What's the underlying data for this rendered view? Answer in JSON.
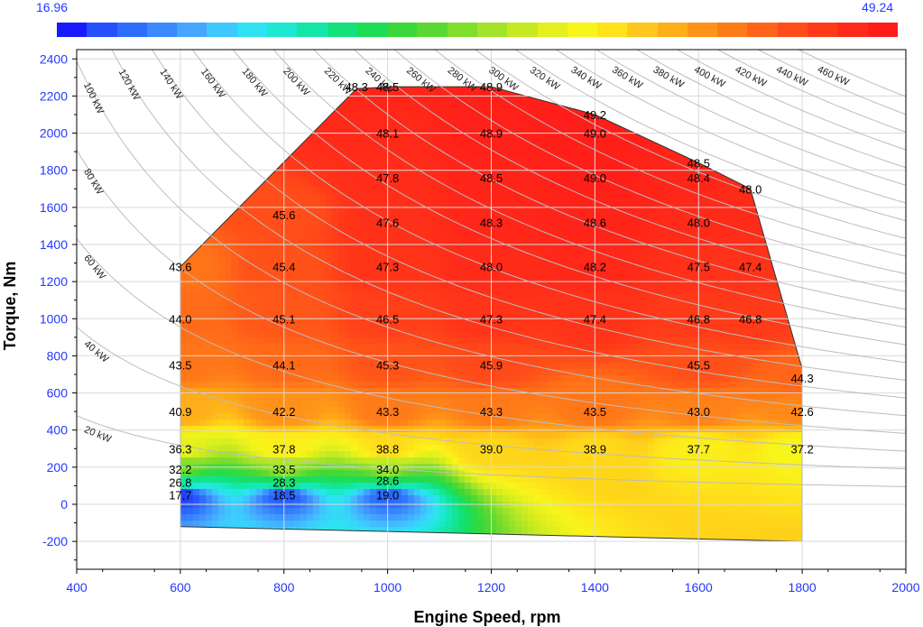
{
  "chart_data": {
    "type": "heatmap",
    "xlabel": "Engine Speed, rpm",
    "ylabel": "Torque, Nm",
    "xlim": [
      400,
      2000
    ],
    "ylim": [
      -350,
      2450
    ],
    "x_ticks": [
      400,
      600,
      800,
      1000,
      1200,
      1400,
      1600,
      1800,
      2000
    ],
    "y_ticks": [
      -200,
      0,
      200,
      400,
      600,
      800,
      1000,
      1200,
      1400,
      1600,
      1800,
      2000,
      2200,
      2400
    ],
    "x_ticks_labels": [
      "400",
      "600",
      "800",
      "1000",
      "1200",
      "1400",
      "1600",
      "1800",
      "2000"
    ],
    "y_ticks_labels": [
      "-200",
      "0",
      "200",
      "400",
      "600",
      "800",
      "1000",
      "1200",
      "1400",
      "1600",
      "1800",
      "2000",
      "2200",
      "2400"
    ],
    "colorbar": {
      "min": 16.96,
      "max": 49.24,
      "min_label": "16.96",
      "max_label": "49.24",
      "colors": [
        "#1a1aff",
        "#2550ff",
        "#2f6dff",
        "#3b8aff",
        "#46a6ff",
        "#3ec8ff",
        "#2ee3f2",
        "#1de9d2",
        "#13e7a8",
        "#12e27c",
        "#1edc55",
        "#3ad83a",
        "#5ad832",
        "#7fdd2c",
        "#a3e428",
        "#c6ea22",
        "#e3f01d",
        "#f8f51a",
        "#ffe21a",
        "#ffc81a",
        "#ffae1a",
        "#ff9419",
        "#ff7b19",
        "#ff6319",
        "#ff4d19",
        "#ff3a19",
        "#ff2a19",
        "#ff1c19"
      ]
    },
    "boundary": [
      [
        600,
        -120
      ],
      [
        600,
        1280
      ],
      [
        940,
        2240
      ],
      [
        1010,
        2250
      ],
      [
        1200,
        2250
      ],
      [
        1400,
        2100
      ],
      [
        1600,
        1840
      ],
      [
        1700,
        1700
      ],
      [
        1800,
        730
      ],
      [
        1800,
        -200
      ]
    ],
    "points": [
      {
        "x": 600,
        "y": 1280,
        "value": 43.6,
        "label": "43.6"
      },
      {
        "x": 600,
        "y": 1000,
        "value": 44.0,
        "label": "44.0"
      },
      {
        "x": 600,
        "y": 750,
        "value": 43.5,
        "label": "43.5"
      },
      {
        "x": 600,
        "y": 500,
        "value": 40.9,
        "label": "40.9"
      },
      {
        "x": 600,
        "y": 300,
        "value": 36.3,
        "label": "36.3"
      },
      {
        "x": 600,
        "y": 190,
        "value": 32.2,
        "label": "32.2"
      },
      {
        "x": 600,
        "y": 120,
        "value": 26.8,
        "label": "26.8"
      },
      {
        "x": 600,
        "y": 50,
        "value": 17.7,
        "label": "17.7"
      },
      {
        "x": 800,
        "y": 1560,
        "value": 45.6,
        "label": "45.6"
      },
      {
        "x": 800,
        "y": 1280,
        "value": 45.4,
        "label": "45.4"
      },
      {
        "x": 800,
        "y": 1000,
        "value": 45.1,
        "label": "45.1"
      },
      {
        "x": 800,
        "y": 750,
        "value": 44.1,
        "label": "44.1"
      },
      {
        "x": 800,
        "y": 500,
        "value": 42.2,
        "label": "42.2"
      },
      {
        "x": 800,
        "y": 300,
        "value": 37.8,
        "label": "37.8"
      },
      {
        "x": 800,
        "y": 190,
        "value": 33.5,
        "label": "33.5"
      },
      {
        "x": 800,
        "y": 120,
        "value": 28.3,
        "label": "28.3"
      },
      {
        "x": 800,
        "y": 50,
        "value": 18.5,
        "label": "18.5"
      },
      {
        "x": 940,
        "y": 2250,
        "value": 48.3,
        "label": "48.3"
      },
      {
        "x": 1000,
        "y": 2250,
        "value": 48.5,
        "label": "48.5"
      },
      {
        "x": 1000,
        "y": 2000,
        "value": 48.1,
        "label": "48.1"
      },
      {
        "x": 1000,
        "y": 1760,
        "value": 47.8,
        "label": "47.8"
      },
      {
        "x": 1000,
        "y": 1520,
        "value": 47.6,
        "label": "47.6"
      },
      {
        "x": 1000,
        "y": 1280,
        "value": 47.3,
        "label": "47.3"
      },
      {
        "x": 1000,
        "y": 1000,
        "value": 46.5,
        "label": "46.5"
      },
      {
        "x": 1000,
        "y": 750,
        "value": 45.3,
        "label": "45.3"
      },
      {
        "x": 1000,
        "y": 500,
        "value": 43.3,
        "label": "43.3"
      },
      {
        "x": 1000,
        "y": 300,
        "value": 38.8,
        "label": "38.8"
      },
      {
        "x": 1000,
        "y": 190,
        "value": 34.0,
        "label": "34.0"
      },
      {
        "x": 1000,
        "y": 130,
        "value": 28.6,
        "label": "28.6"
      },
      {
        "x": 1000,
        "y": 50,
        "value": 19.0,
        "label": "19.0"
      },
      {
        "x": 1200,
        "y": 2250,
        "value": 48.9,
        "label": "48.9"
      },
      {
        "x": 1200,
        "y": 2000,
        "value": 48.9,
        "label": "48.9"
      },
      {
        "x": 1200,
        "y": 1760,
        "value": 48.5,
        "label": "48.5"
      },
      {
        "x": 1200,
        "y": 1520,
        "value": 48.3,
        "label": "48.3"
      },
      {
        "x": 1200,
        "y": 1280,
        "value": 48.0,
        "label": "48.0"
      },
      {
        "x": 1200,
        "y": 1000,
        "value": 47.3,
        "label": "47.3"
      },
      {
        "x": 1200,
        "y": 750,
        "value": 45.9,
        "label": "45.9"
      },
      {
        "x": 1200,
        "y": 500,
        "value": 43.3,
        "label": "43.3"
      },
      {
        "x": 1200,
        "y": 300,
        "value": 39.0,
        "label": "39.0"
      },
      {
        "x": 1400,
        "y": 2100,
        "value": 49.2,
        "label": "49.2"
      },
      {
        "x": 1400,
        "y": 2000,
        "value": 49.0,
        "label": "49.0"
      },
      {
        "x": 1400,
        "y": 1760,
        "value": 49.0,
        "label": "49.0"
      },
      {
        "x": 1400,
        "y": 1520,
        "value": 48.6,
        "label": "48.6"
      },
      {
        "x": 1400,
        "y": 1280,
        "value": 48.2,
        "label": "48.2"
      },
      {
        "x": 1400,
        "y": 1000,
        "value": 47.4,
        "label": "47.4"
      },
      {
        "x": 1400,
        "y": 500,
        "value": 43.5,
        "label": "43.5"
      },
      {
        "x": 1400,
        "y": 300,
        "value": 38.9,
        "label": "38.9"
      },
      {
        "x": 1600,
        "y": 1840,
        "value": 48.5,
        "label": "48.5"
      },
      {
        "x": 1600,
        "y": 1760,
        "value": 48.4,
        "label": "48.4"
      },
      {
        "x": 1600,
        "y": 1520,
        "value": 48.0,
        "label": "48.0"
      },
      {
        "x": 1600,
        "y": 1280,
        "value": 47.5,
        "label": "47.5"
      },
      {
        "x": 1600,
        "y": 1000,
        "value": 46.8,
        "label": "46.8"
      },
      {
        "x": 1600,
        "y": 750,
        "value": 45.5,
        "label": "45.5"
      },
      {
        "x": 1600,
        "y": 500,
        "value": 43.0,
        "label": "43.0"
      },
      {
        "x": 1600,
        "y": 300,
        "value": 37.7,
        "label": "37.7"
      },
      {
        "x": 1700,
        "y": 1700,
        "value": 48.0,
        "label": "48.0"
      },
      {
        "x": 1700,
        "y": 1280,
        "value": 47.4,
        "label": "47.4"
      },
      {
        "x": 1700,
        "y": 1000,
        "value": 46.8,
        "label": "46.8"
      },
      {
        "x": 1800,
        "y": 680,
        "value": 44.3,
        "label": "44.3"
      },
      {
        "x": 1800,
        "y": 500,
        "value": 42.6,
        "label": "42.6"
      },
      {
        "x": 1800,
        "y": 300,
        "value": 37.2,
        "label": "37.2"
      }
    ],
    "power_curves": [
      {
        "kw": 20,
        "label": "20 kW"
      },
      {
        "kw": 40,
        "label": "40 kW"
      },
      {
        "kw": 60,
        "label": "60 kW"
      },
      {
        "kw": 80,
        "label": "80 kW"
      },
      {
        "kw": 100,
        "label": "100 kW"
      },
      {
        "kw": 120,
        "label": "120 kW"
      },
      {
        "kw": 140,
        "label": "140 kW"
      },
      {
        "kw": 160,
        "label": "160 kW"
      },
      {
        "kw": 180,
        "label": "180 kW"
      },
      {
        "kw": 200,
        "label": "200 kW"
      },
      {
        "kw": 220,
        "label": "220 kW"
      },
      {
        "kw": 240,
        "label": "240 kW"
      },
      {
        "kw": 260,
        "label": "260 kW"
      },
      {
        "kw": 280,
        "label": "280 kW"
      },
      {
        "kw": 300,
        "label": "300 kW"
      },
      {
        "kw": 320,
        "label": "320 kW"
      },
      {
        "kw": 340,
        "label": "340 kW"
      },
      {
        "kw": 360,
        "label": "360 kW"
      },
      {
        "kw": 380,
        "label": "380 kW"
      },
      {
        "kw": 400,
        "label": "400 kW"
      },
      {
        "kw": 420,
        "label": "420 kW"
      },
      {
        "kw": 440,
        "label": "440 kW"
      },
      {
        "kw": 460,
        "label": "460 kW"
      }
    ]
  }
}
